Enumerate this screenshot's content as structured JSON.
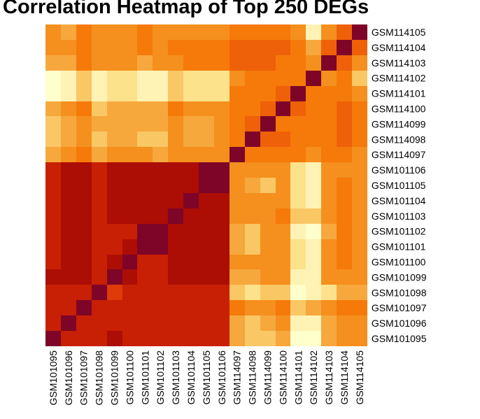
{
  "chart_data": {
    "type": "heatmap",
    "title": "Correlation Heatmap of Top 250 DEGs",
    "x_labels": [
      "GSM101095",
      "GSM101096",
      "GSM101097",
      "GSM101098",
      "GSM101099",
      "GSM101100",
      "GSM101101",
      "GSM101102",
      "GSM101103",
      "GSM101104",
      "GSM101105",
      "GSM101106",
      "GSM114097",
      "GSM114098",
      "GSM114099",
      "GSM114100",
      "GSM114101",
      "GSM114102",
      "GSM114103",
      "GSM114104",
      "GSM114105"
    ],
    "y_labels": [
      "GSM114105",
      "GSM114104",
      "GSM114103",
      "GSM114102",
      "GSM114101",
      "GSM114100",
      "GSM114099",
      "GSM114098",
      "GSM114097",
      "GSM101106",
      "GSM101105",
      "GSM101104",
      "GSM101103",
      "GSM101102",
      "GSM101101",
      "GSM101100",
      "GSM101099",
      "GSM101098",
      "GSM101097",
      "GSM101096",
      "GSM101095"
    ],
    "color_scale": [
      "#FFFFCC",
      "#FFF2B5",
      "#FDE28C",
      "#FAC765",
      "#F6A83D",
      "#F58F1E",
      "#F57A0A",
      "#EE6108",
      "#DE3B08",
      "#C82004",
      "#AC0D04",
      "#7E0428"
    ],
    "values": [
      [
        5,
        4,
        6,
        5,
        5,
        5,
        6,
        5,
        5,
        5,
        5,
        5,
        6,
        6,
        6,
        6,
        5,
        1,
        5,
        7,
        11
      ],
      [
        5,
        5,
        6,
        5,
        5,
        5,
        6,
        5,
        6,
        6,
        6,
        6,
        7,
        7,
        7,
        7,
        6,
        4,
        7,
        11,
        7
      ],
      [
        4,
        4,
        6,
        5,
        5,
        5,
        4,
        5,
        5,
        6,
        6,
        6,
        7,
        7,
        7,
        6,
        6,
        5,
        11,
        7,
        5
      ],
      [
        0,
        1,
        3,
        1,
        2,
        2,
        1,
        1,
        3,
        2,
        2,
        2,
        5,
        6,
        6,
        6,
        6,
        11,
        5,
        6,
        3
      ],
      [
        0,
        1,
        3,
        1,
        2,
        2,
        1,
        1,
        3,
        2,
        2,
        2,
        6,
        6,
        6,
        7,
        11,
        6,
        6,
        6,
        5
      ],
      [
        4,
        5,
        6,
        3,
        4,
        4,
        4,
        4,
        6,
        5,
        5,
        5,
        6,
        6,
        7,
        11,
        7,
        6,
        6,
        7,
        6
      ],
      [
        3,
        4,
        5,
        4,
        4,
        4,
        4,
        4,
        5,
        4,
        4,
        5,
        6,
        7,
        11,
        6,
        6,
        6,
        6,
        7,
        6
      ],
      [
        3,
        4,
        5,
        3,
        4,
        4,
        3,
        3,
        5,
        4,
        4,
        5,
        6,
        11,
        7,
        7,
        6,
        6,
        6,
        7,
        6
      ],
      [
        4,
        5,
        6,
        4,
        5,
        5,
        5,
        4,
        5,
        5,
        5,
        5,
        11,
        6,
        6,
        6,
        6,
        5,
        6,
        6,
        5
      ],
      [
        9,
        10,
        10,
        9,
        10,
        10,
        10,
        10,
        10,
        10,
        11,
        11,
        5,
        5,
        5,
        5,
        2,
        1,
        5,
        5,
        5
      ],
      [
        9,
        10,
        10,
        9,
        10,
        10,
        10,
        10,
        10,
        10,
        11,
        11,
        5,
        4,
        3,
        5,
        2,
        1,
        5,
        6,
        5
      ],
      [
        9,
        10,
        10,
        9,
        10,
        10,
        10,
        10,
        10,
        11,
        10,
        10,
        5,
        5,
        5,
        5,
        2,
        1,
        5,
        6,
        5
      ],
      [
        9,
        10,
        10,
        9,
        10,
        10,
        10,
        10,
        11,
        10,
        10,
        10,
        5,
        5,
        5,
        6,
        3,
        3,
        5,
        6,
        5
      ],
      [
        9,
        10,
        10,
        9,
        9,
        9,
        11,
        11,
        10,
        10,
        10,
        10,
        4,
        3,
        5,
        5,
        1,
        0,
        4,
        6,
        5
      ],
      [
        9,
        10,
        10,
        9,
        9,
        10,
        11,
        11,
        10,
        10,
        10,
        10,
        4,
        3,
        5,
        5,
        2,
        1,
        5,
        6,
        5
      ],
      [
        9,
        10,
        10,
        9,
        10,
        11,
        9,
        9,
        10,
        10,
        10,
        10,
        5,
        5,
        5,
        5,
        2,
        1,
        5,
        6,
        5
      ],
      [
        10,
        10,
        10,
        9,
        11,
        10,
        9,
        9,
        10,
        10,
        10,
        10,
        4,
        4,
        5,
        5,
        1,
        1,
        5,
        5,
        5
      ],
      [
        9,
        9,
        9,
        11,
        8,
        9,
        9,
        9,
        9,
        9,
        9,
        9,
        3,
        2,
        3,
        3,
        0,
        1,
        2,
        4,
        4
      ],
      [
        9,
        9,
        11,
        9,
        9,
        9,
        9,
        9,
        9,
        9,
        9,
        9,
        6,
        5,
        5,
        6,
        3,
        4,
        5,
        6,
        6
      ],
      [
        9,
        11,
        9,
        9,
        9,
        9,
        9,
        9,
        9,
        9,
        9,
        9,
        4,
        3,
        4,
        5,
        1,
        1,
        4,
        5,
        5
      ],
      [
        11,
        9,
        9,
        9,
        10,
        9,
        9,
        9,
        9,
        9,
        9,
        9,
        4,
        3,
        3,
        4,
        0,
        0,
        4,
        5,
        5
      ]
    ]
  }
}
